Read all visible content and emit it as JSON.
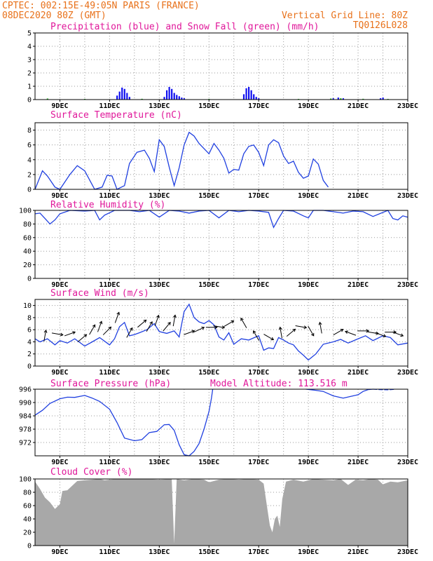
{
  "header": {
    "line1": "CPTEC:  002:15E-49:05N  PARIS (FRANCE)",
    "line2": "08DEC2020 80Z (GMT)",
    "grid_note": "Vertical Grid Line: 80Z",
    "code": "TQ0126L028"
  },
  "x_tick_labels": [
    "9DEC",
    "11DEC",
    "13DEC",
    "15DEC",
    "17DEC",
    "19DEC",
    "21DEC",
    "23DEC"
  ],
  "colors": {
    "header": "#e8711a",
    "title": "#e0179a",
    "line": "#2040e0",
    "precip": "#1010f0",
    "snow": "#20b020",
    "cloud": "#a8a8a8"
  },
  "chart_data": [
    {
      "type": "bar",
      "title": "Precipitation (blue) and Snow Fall (green) (mm/h)",
      "ylim": [
        0,
        5
      ],
      "yticks": [
        "0",
        "1",
        "2",
        "3",
        "4",
        "5"
      ],
      "series": [
        {
          "name": "Precipitation",
          "x": [
            11.3,
            11.4,
            11.5,
            11.6,
            11.7,
            11.8,
            13.2,
            13.3,
            13.4,
            13.5,
            13.6,
            13.7,
            13.8,
            13.9,
            14.0,
            16.4,
            16.5,
            16.6,
            16.7,
            16.8,
            16.9,
            17.0,
            20.0,
            20.2,
            20.4,
            21.9,
            22.0
          ],
          "values": [
            0.3,
            0.6,
            0.9,
            0.8,
            0.5,
            0.2,
            0.2,
            0.7,
            0.95,
            0.8,
            0.5,
            0.35,
            0.25,
            0.15,
            0.1,
            0.4,
            0.85,
            0.95,
            0.7,
            0.4,
            0.2,
            0.1,
            0.1,
            0.15,
            0.1,
            0.1,
            0.15
          ]
        },
        {
          "name": "Snow Fall",
          "x": [
            8.5,
            10.0,
            12.3,
            15.0,
            18.6,
            19.9,
            20.3,
            21.2,
            22.2
          ],
          "values": [
            0.08,
            0.05,
            0.06,
            0.05,
            0.05,
            0.08,
            0.1,
            0.06,
            0.05
          ]
        }
      ]
    },
    {
      "type": "line",
      "title": "Surface Temperature (nC)",
      "ylim": [
        0,
        9
      ],
      "yticks": [
        "0",
        "2",
        "4",
        "6",
        "8"
      ],
      "x": [
        8.0,
        8.3,
        8.5,
        8.8,
        9.0,
        9.4,
        9.7,
        10.0,
        10.4,
        10.7,
        10.9,
        11.1,
        11.3,
        11.6,
        11.8,
        12.1,
        12.4,
        12.6,
        12.8,
        13.0,
        13.2,
        13.4,
        13.6,
        13.8,
        14.0,
        14.2,
        14.4,
        14.6,
        14.8,
        15.0,
        15.2,
        15.4,
        15.6,
        15.8,
        16.0,
        16.2,
        16.4,
        16.6,
        16.8,
        17.0,
        17.2,
        17.4,
        17.6,
        17.8,
        18.0,
        18.2,
        18.4,
        18.6,
        18.8,
        19.0,
        19.2,
        19.4,
        19.6,
        19.8
      ],
      "values": [
        0.0,
        2.5,
        1.8,
        0.3,
        0.0,
        2.0,
        3.2,
        2.5,
        0.0,
        0.3,
        1.9,
        1.8,
        0.0,
        0.5,
        3.5,
        5.0,
        5.3,
        4.2,
        2.4,
        6.7,
        5.8,
        3.0,
        0.5,
        2.9,
        6.0,
        7.7,
        7.2,
        6.2,
        5.5,
        4.8,
        6.2,
        5.3,
        4.2,
        2.2,
        2.7,
        2.6,
        4.8,
        5.8,
        6.0,
        5.0,
        3.2,
        6.0,
        6.7,
        6.3,
        4.5,
        3.5,
        3.8,
        2.3,
        1.5,
        1.8,
        4.1,
        3.4,
        1.2,
        0.3
      ]
    },
    {
      "type": "line",
      "title": "Relative Humidity (%)",
      "ylim": [
        0,
        100
      ],
      "yticks": [
        "0",
        "20",
        "40",
        "60",
        "80",
        "100"
      ],
      "x": [
        8.0,
        8.2,
        8.4,
        8.6,
        8.8,
        9.0,
        9.4,
        10.0,
        10.4,
        10.6,
        10.8,
        11.2,
        11.8,
        12.2,
        12.6,
        13.0,
        13.4,
        13.8,
        14.2,
        14.6,
        15.0,
        15.4,
        15.8,
        16.2,
        16.6,
        17.0,
        17.4,
        17.6,
        17.8,
        18.0,
        18.4,
        18.8,
        19.0,
        19.2,
        19.6,
        20.0,
        20.4,
        20.8,
        21.2,
        21.6,
        22.0,
        22.2,
        22.4,
        22.6,
        22.8,
        23.0
      ],
      "values": [
        95,
        96,
        88,
        80,
        86,
        95,
        100,
        99,
        100,
        86,
        93,
        100,
        100,
        98,
        100,
        90,
        100,
        99,
        96,
        99,
        100,
        89,
        100,
        98,
        100,
        99,
        97,
        75,
        88,
        100,
        99,
        92,
        89,
        100,
        100,
        98,
        96,
        99,
        98,
        91,
        97,
        100,
        88,
        86,
        92,
        90
      ]
    },
    {
      "type": "line",
      "title": "Surface Wind (m/s)",
      "ylim": [
        0,
        11
      ],
      "yticks": [
        "0",
        "2",
        "4",
        "6",
        "8",
        "10"
      ],
      "x": [
        8.0,
        8.2,
        8.5,
        8.8,
        9.0,
        9.3,
        9.6,
        10.0,
        10.3,
        10.6,
        11.0,
        11.2,
        11.4,
        11.6,
        11.8,
        12.0,
        12.2,
        12.5,
        12.8,
        13.0,
        13.3,
        13.6,
        13.8,
        14.0,
        14.2,
        14.4,
        14.6,
        14.8,
        15.0,
        15.2,
        15.4,
        15.6,
        15.8,
        16.0,
        16.3,
        16.6,
        17.0,
        17.2,
        17.4,
        17.6,
        17.8,
        18.0,
        18.2,
        18.4,
        18.6,
        18.8,
        19.0,
        19.3,
        19.6,
        20.0,
        20.3,
        20.6,
        21.0,
        21.3,
        21.6,
        22.0,
        22.3,
        22.6,
        23.0
      ],
      "values": [
        4.5,
        4.0,
        4.5,
        3.5,
        4.2,
        3.8,
        4.5,
        3.3,
        4.0,
        4.7,
        3.5,
        4.5,
        6.5,
        7.2,
        5.0,
        5.2,
        5.5,
        6.0,
        7.0,
        5.7,
        5.4,
        5.8,
        4.8,
        9.0,
        10.2,
        8.0,
        7.3,
        7.0,
        7.5,
        6.8,
        4.8,
        4.3,
        5.5,
        3.6,
        4.5,
        4.3,
        5.0,
        2.6,
        3.0,
        2.9,
        4.7,
        4.3,
        3.8,
        3.5,
        2.5,
        1.8,
        1.0,
        2.0,
        3.6,
        4.0,
        4.4,
        3.8,
        4.5,
        5.0,
        4.2,
        5.0,
        4.7,
        3.5,
        3.8
      ],
      "arrows": [
        {
          "x": 8.4,
          "y": 5.0,
          "dir": -80
        },
        {
          "x": 8.9,
          "y": 5.3,
          "dir": 10
        },
        {
          "x": 9.4,
          "y": 5.3,
          "dir": -20
        },
        {
          "x": 9.9,
          "y": 4.6,
          "dir": -40
        },
        {
          "x": 10.3,
          "y": 6.0,
          "dir": -60
        },
        {
          "x": 10.6,
          "y": 6.5,
          "dir": -70
        },
        {
          "x": 10.9,
          "y": 5.8,
          "dir": -45
        },
        {
          "x": 11.3,
          "y": 8.0,
          "dir": -70
        },
        {
          "x": 11.8,
          "y": 5.5,
          "dir": -60
        },
        {
          "x": 12.3,
          "y": 7.0,
          "dir": -40
        },
        {
          "x": 12.6,
          "y": 6.5,
          "dir": -60
        },
        {
          "x": 12.9,
          "y": 7.5,
          "dir": -70
        },
        {
          "x": 13.3,
          "y": 6.5,
          "dir": -50
        },
        {
          "x": 13.6,
          "y": 7.5,
          "dir": -80
        },
        {
          "x": 14.2,
          "y": 5.5,
          "dir": -20
        },
        {
          "x": 14.6,
          "y": 6.0,
          "dir": -25
        },
        {
          "x": 15.1,
          "y": 6.4,
          "dir": 0
        },
        {
          "x": 15.4,
          "y": 6.5,
          "dir": 10
        },
        {
          "x": 15.8,
          "y": 7.0,
          "dir": -30
        },
        {
          "x": 16.4,
          "y": 7.1,
          "dir": -120
        },
        {
          "x": 16.9,
          "y": 5.0,
          "dir": -120
        },
        {
          "x": 17.4,
          "y": 4.8,
          "dir": 30
        },
        {
          "x": 17.9,
          "y": 5.5,
          "dir": -100
        },
        {
          "x": 18.3,
          "y": 5.5,
          "dir": -40
        },
        {
          "x": 18.7,
          "y": 6.5,
          "dir": 10
        },
        {
          "x": 19.1,
          "y": 5.8,
          "dir": 60
        },
        {
          "x": 19.5,
          "y": 6.3,
          "dir": -100
        },
        {
          "x": 20.2,
          "y": 5.6,
          "dir": -30
        },
        {
          "x": 20.7,
          "y": 5.4,
          "dir": -160
        },
        {
          "x": 21.2,
          "y": 5.8,
          "dir": 0
        },
        {
          "x": 21.6,
          "y": 5.5,
          "dir": 10
        },
        {
          "x": 21.9,
          "y": 5.2,
          "dir": 20
        },
        {
          "x": 22.3,
          "y": 5.6,
          "dir": 0
        },
        {
          "x": 22.6,
          "y": 5.3,
          "dir": 20
        }
      ]
    },
    {
      "type": "line",
      "title": "Surface Pressure (hPa)",
      "annotation": "Model Altitude: 113.516 m",
      "ylim": [
        966,
        996
      ],
      "yticks": [
        "972",
        "978",
        "984",
        "990",
        "996"
      ],
      "x": [
        8.0,
        8.3,
        8.6,
        9.0,
        9.3,
        9.6,
        10.0,
        10.3,
        10.6,
        11.0,
        11.3,
        11.6,
        12.0,
        12.3,
        12.6,
        12.9,
        13.2,
        13.4,
        13.6,
        13.8,
        14.0,
        14.2,
        14.4,
        14.6,
        14.8,
        15.0,
        15.1,
        15.15
      ],
      "values": [
        984.3,
        986.5,
        989.6,
        991.7,
        992.4,
        992.3,
        993.2,
        992.0,
        990.5,
        987.0,
        981.0,
        974.0,
        972.8,
        973.3,
        976.5,
        977.0,
        980.0,
        980.1,
        977.5,
        971.0,
        966.5,
        966.0,
        968.0,
        971.5,
        978.0,
        986.0,
        992.0,
        996.0
      ],
      "x2": [
        18.9,
        19.3,
        19.6,
        20.0,
        20.4,
        20.8,
        21.0,
        21.2,
        21.4,
        21.6
      ],
      "values2": [
        996.0,
        995.5,
        995.0,
        993.0,
        992.0,
        993.0,
        993.5,
        995.0,
        995.8,
        996.0
      ],
      "x3": [
        21.6,
        21.9,
        22.2,
        22.5
      ],
      "values3": [
        996.0,
        995.8,
        995.7,
        996.0
      ]
    },
    {
      "type": "area",
      "title": "Cloud Cover (%)",
      "ylim": [
        0,
        100
      ],
      "yticks": [
        "0",
        "20",
        "40",
        "60",
        "80",
        "100"
      ],
      "x": [
        8.0,
        8.2,
        8.4,
        8.6,
        8.8,
        9.0,
        9.1,
        9.3,
        9.5,
        9.7,
        10.0,
        10.3,
        10.6,
        10.8,
        11.0,
        11.3,
        11.6,
        12.0,
        12.5,
        13.0,
        13.5,
        13.6,
        13.7,
        14.0,
        14.4,
        14.8,
        15.0,
        15.4,
        15.8,
        16.2,
        16.6,
        17.0,
        17.2,
        17.35,
        17.45,
        17.55,
        17.65,
        17.75,
        17.85,
        17.95,
        18.1,
        18.4,
        18.8,
        19.2,
        19.6,
        20.0,
        20.3,
        20.6,
        20.9,
        21.2,
        21.5,
        21.8,
        22.0,
        22.3,
        22.6,
        23.0
      ],
      "values": [
        96,
        85,
        72,
        65,
        55,
        62,
        82,
        83,
        90,
        97,
        98,
        99,
        100,
        98,
        99,
        100,
        100,
        100,
        100,
        99,
        100,
        3,
        100,
        98,
        100,
        99,
        95,
        99,
        100,
        99,
        100,
        99,
        93,
        55,
        30,
        20,
        40,
        45,
        28,
        70,
        96,
        99,
        96,
        100,
        99,
        98,
        100,
        91,
        99,
        98,
        100,
        99,
        92,
        96,
        95,
        98
      ]
    }
  ]
}
